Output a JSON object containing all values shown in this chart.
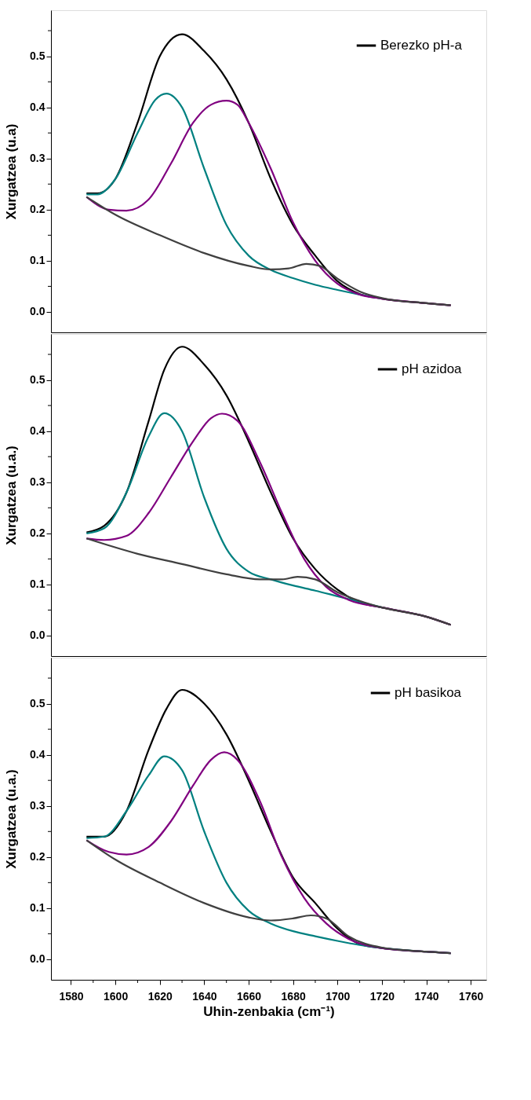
{
  "chart_data": [
    {
      "type": "line",
      "ylabel": "Xurgatzea (u.a)",
      "xlim": [
        1571,
        1767
      ],
      "ylim": [
        -0.04,
        0.59
      ],
      "tick_labels": "y",
      "legend": "top right",
      "yticks": [
        {
          "value": 0,
          "label": "0.0"
        },
        {
          "value": 0.05,
          "label": null
        },
        0.1,
        {
          "value": 0.15,
          "label": null
        },
        0.2,
        {
          "value": 0.25,
          "label": null
        },
        0.3,
        {
          "value": 0.35,
          "label": null
        },
        0.4,
        {
          "value": 0.45,
          "label": null
        },
        0.5,
        {
          "value": 0.55,
          "label": null
        }
      ],
      "series": [
        {
          "name": "Berezko pH-a",
          "color": "#000000",
          "x": [
            1587,
            1592,
            1600,
            1610,
            1620,
            1630,
            1640,
            1650,
            1660,
            1670,
            1680,
            1690,
            1700,
            1710,
            1720,
            1740,
            1751
          ],
          "values": [
            0.232,
            0.232,
            0.26,
            0.37,
            0.5,
            0.543,
            0.51,
            0.455,
            0.37,
            0.26,
            0.17,
            0.11,
            0.06,
            0.035,
            0.026,
            0.017,
            0.013
          ]
        },
        {
          "color": "#008080",
          "x": [
            1587,
            1592,
            1600,
            1610,
            1618,
            1623,
            1630,
            1640,
            1650,
            1660,
            1670,
            1680,
            1690,
            1700,
            1710,
            1720
          ],
          "values": [
            0.23,
            0.23,
            0.26,
            0.35,
            0.415,
            0.427,
            0.4,
            0.28,
            0.17,
            0.11,
            0.082,
            0.066,
            0.053,
            0.043,
            0.034,
            0.026
          ]
        },
        {
          "color": "#800080",
          "x": [
            1587,
            1597,
            1605,
            1615,
            1625,
            1635,
            1643,
            1650,
            1655,
            1660,
            1670,
            1680,
            1690,
            1700,
            1710,
            1720,
            1740,
            1751
          ],
          "values": [
            0.225,
            0.2,
            0.198,
            0.22,
            0.29,
            0.37,
            0.405,
            0.413,
            0.405,
            0.37,
            0.28,
            0.175,
            0.1,
            0.055,
            0.034,
            0.026,
            0.017,
            0.013
          ]
        },
        {
          "color": "#404040",
          "x": [
            1587,
            1600,
            1620,
            1640,
            1660,
            1670,
            1678,
            1686,
            1692,
            1700,
            1710,
            1720,
            1740,
            1751
          ],
          "values": [
            0.225,
            0.19,
            0.15,
            0.115,
            0.09,
            0.083,
            0.085,
            0.094,
            0.09,
            0.065,
            0.04,
            0.027,
            0.017,
            0.013
          ]
        }
      ]
    },
    {
      "type": "line",
      "ylabel": "Xurgatzea (u.a.)",
      "xlim": [
        1571,
        1767
      ],
      "ylim": [
        -0.04,
        0.59
      ],
      "tick_labels": "y",
      "legend": "top right",
      "yticks": [
        {
          "value": 0,
          "label": "0.0"
        },
        {
          "value": 0.05,
          "label": null
        },
        0.1,
        {
          "value": 0.15,
          "label": null
        },
        0.2,
        {
          "value": 0.25,
          "label": null
        },
        0.3,
        {
          "value": 0.35,
          "label": null
        },
        0.4,
        {
          "value": 0.45,
          "label": null
        },
        0.5,
        {
          "value": 0.55,
          "label": null
        }
      ],
      "series": [
        {
          "name": "pH azidoa",
          "color": "#000000",
          "x": [
            1587,
            1595,
            1605,
            1615,
            1622,
            1630,
            1640,
            1650,
            1660,
            1670,
            1680,
            1690,
            1700,
            1710,
            1720,
            1740,
            1751
          ],
          "values": [
            0.202,
            0.215,
            0.28,
            0.42,
            0.52,
            0.565,
            0.53,
            0.47,
            0.38,
            0.28,
            0.19,
            0.13,
            0.09,
            0.065,
            0.055,
            0.037,
            0.021
          ]
        },
        {
          "color": "#008080",
          "x": [
            1587,
            1595,
            1605,
            1615,
            1622,
            1630,
            1640,
            1650,
            1660,
            1670,
            1680,
            1690,
            1700,
            1710,
            1720
          ],
          "values": [
            0.2,
            0.21,
            0.28,
            0.39,
            0.435,
            0.4,
            0.27,
            0.17,
            0.125,
            0.11,
            0.098,
            0.088,
            0.077,
            0.066,
            0.055
          ]
        },
        {
          "color": "#800080",
          "x": [
            1587,
            1595,
            1605,
            1615,
            1625,
            1635,
            1643,
            1648,
            1655,
            1665,
            1675,
            1685,
            1695,
            1705,
            1720,
            1740,
            1751
          ],
          "values": [
            0.19,
            0.187,
            0.195,
            0.24,
            0.31,
            0.38,
            0.425,
            0.434,
            0.42,
            0.34,
            0.24,
            0.15,
            0.095,
            0.07,
            0.055,
            0.037,
            0.021
          ]
        },
        {
          "color": "#404040",
          "x": [
            1587,
            1610,
            1630,
            1650,
            1665,
            1675,
            1682,
            1690,
            1700,
            1710,
            1720,
            1740,
            1751
          ],
          "values": [
            0.19,
            0.16,
            0.14,
            0.12,
            0.11,
            0.11,
            0.115,
            0.11,
            0.085,
            0.068,
            0.055,
            0.037,
            0.021
          ]
        }
      ]
    },
    {
      "type": "line",
      "ylabel": "Xurgatzea (u.a.)",
      "xlabel": "Uhin-zenbakia (cm⁻¹)",
      "xlim": [
        1571,
        1767
      ],
      "ylim": [
        -0.04,
        0.59
      ],
      "legend": "top right",
      "xticks": [
        1580,
        {
          "value": 1590,
          "label": null
        },
        1600,
        {
          "value": 1610,
          "label": null
        },
        1620,
        {
          "value": 1630,
          "label": null
        },
        1640,
        {
          "value": 1650,
          "label": null
        },
        1660,
        {
          "value": 1670,
          "label": null
        },
        1680,
        {
          "value": 1690,
          "label": null
        },
        1700,
        {
          "value": 1710,
          "label": null
        },
        1720,
        {
          "value": 1730,
          "label": null
        },
        1740,
        {
          "value": 1750,
          "label": null
        },
        1760
      ],
      "yticks": [
        {
          "value": 0,
          "label": "0.0"
        },
        {
          "value": 0.05,
          "label": null
        },
        0.1,
        {
          "value": 0.15,
          "label": null
        },
        0.2,
        {
          "value": 0.25,
          "label": null
        },
        0.3,
        {
          "value": 0.35,
          "label": null
        },
        0.4,
        {
          "value": 0.45,
          "label": null
        },
        0.5,
        {
          "value": 0.55,
          "label": null
        }
      ],
      "series": [
        {
          "name": "pH basikoa",
          "color": "#000000",
          "x": [
            1587,
            1595,
            1605,
            1615,
            1623,
            1630,
            1640,
            1650,
            1660,
            1670,
            1680,
            1690,
            1700,
            1710,
            1720,
            1740,
            1751
          ],
          "values": [
            0.24,
            0.24,
            0.29,
            0.41,
            0.49,
            0.527,
            0.5,
            0.44,
            0.35,
            0.25,
            0.16,
            0.11,
            0.06,
            0.03,
            0.022,
            0.015,
            0.012
          ]
        },
        {
          "color": "#008080",
          "x": [
            1587,
            1595,
            1605,
            1615,
            1622,
            1630,
            1640,
            1650,
            1660,
            1670,
            1680,
            1690,
            1700,
            1710,
            1720,
            1740,
            1751
          ],
          "values": [
            0.237,
            0.24,
            0.29,
            0.36,
            0.397,
            0.37,
            0.25,
            0.15,
            0.095,
            0.07,
            0.055,
            0.045,
            0.036,
            0.028,
            0.022,
            0.015,
            0.012
          ]
        },
        {
          "color": "#800080",
          "x": [
            1587,
            1597,
            1605,
            1615,
            1625,
            1635,
            1643,
            1649,
            1655,
            1665,
            1675,
            1685,
            1695,
            1705,
            1720,
            1740,
            1751
          ],
          "values": [
            0.233,
            0.21,
            0.205,
            0.22,
            0.27,
            0.34,
            0.39,
            0.405,
            0.39,
            0.31,
            0.2,
            0.12,
            0.07,
            0.04,
            0.022,
            0.015,
            0.012
          ]
        },
        {
          "color": "#404040",
          "x": [
            1587,
            1600,
            1620,
            1640,
            1660,
            1670,
            1680,
            1688,
            1695,
            1705,
            1720,
            1740,
            1751
          ],
          "values": [
            0.233,
            0.195,
            0.15,
            0.11,
            0.082,
            0.076,
            0.08,
            0.086,
            0.08,
            0.045,
            0.023,
            0.015,
            0.012
          ]
        }
      ]
    }
  ]
}
